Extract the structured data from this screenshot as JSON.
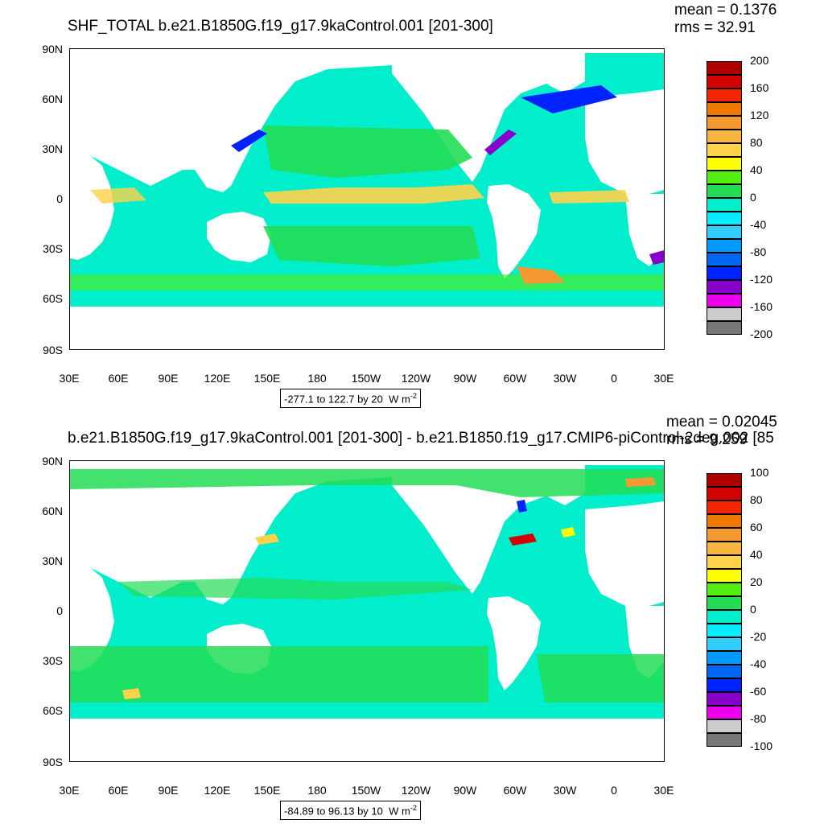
{
  "chart_data": [
    {
      "type": "heatmap",
      "title": "SHF_TOTAL b.e21.B1850G.f19_g17.9kaControl.001 [201-300]",
      "stats": {
        "mean_label": "mean = 0.1376",
        "rms_label": "rms = 32.91"
      },
      "range_label": "-277.1 to 122.7 by 20",
      "units": "W m",
      "units_sup": "-2",
      "lat_ticks": [
        "90N",
        "60N",
        "30N",
        "0",
        "30S",
        "60S",
        "90S"
      ],
      "lon_ticks": [
        "30E",
        "60E",
        "90E",
        "120E",
        "150E",
        "180",
        "150W",
        "120W",
        "90W",
        "60W",
        "30W",
        "0",
        "30E"
      ],
      "colorbar": {
        "labels": [
          "200",
          "160",
          "120",
          "80",
          "40",
          "0",
          "-40",
          "-80",
          "-120",
          "-160",
          "-200"
        ],
        "colors": [
          "#b00000",
          "#d40000",
          "#f22600",
          "#ee7a00",
          "#f59a30",
          "#f8b640",
          "#ffd24a",
          "#ffff00",
          "#55ee11",
          "#22dd55",
          "#00eecc",
          "#00eeff",
          "#33ccff",
          "#0099ff",
          "#0066ee",
          "#0022ff",
          "#8800cc",
          "#ee00ee",
          "#cccccc",
          "#777777"
        ]
      }
    },
    {
      "type": "heatmap",
      "title": "b.e21.B1850G.f19_g17.9kaControl.001 [201-300] - b.e21.B1850.f19_g17.CMIP6-piControl-2deg.002 [85",
      "stats": {
        "mean_label": "mean = 0.02045",
        "rms_label": "rms = 9.259"
      },
      "range_label": "-84.89 to 96.13 by 10",
      "units": "W m",
      "units_sup": "-2",
      "lat_ticks": [
        "90N",
        "60N",
        "30N",
        "0",
        "30S",
        "60S",
        "90S"
      ],
      "lon_ticks": [
        "30E",
        "60E",
        "90E",
        "120E",
        "150E",
        "180",
        "150W",
        "120W",
        "90W",
        "60W",
        "30W",
        "0",
        "30E"
      ],
      "colorbar": {
        "labels": [
          "100",
          "80",
          "60",
          "40",
          "20",
          "0",
          "-20",
          "-40",
          "-60",
          "-80",
          "-100"
        ],
        "colors": [
          "#b00000",
          "#d40000",
          "#f22600",
          "#ee7a00",
          "#f59a30",
          "#f8b640",
          "#ffd24a",
          "#ffff00",
          "#55ee11",
          "#22dd55",
          "#00eecc",
          "#00eeff",
          "#33ccff",
          "#0099ff",
          "#0066ee",
          "#0022ff",
          "#8800cc",
          "#ee00ee",
          "#cccccc",
          "#777777"
        ]
      }
    }
  ]
}
